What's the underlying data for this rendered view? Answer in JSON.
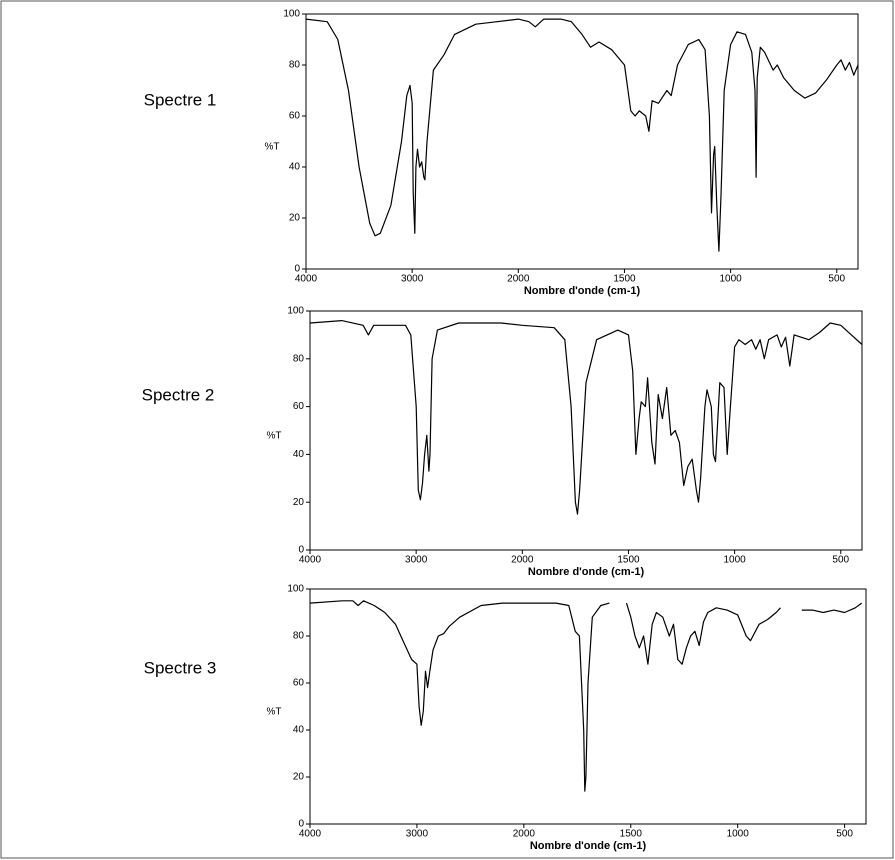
{
  "chart_data": [
    {
      "type": "line",
      "title": "Spectre 1",
      "ylabel": "%T",
      "xlabel": "Nombre d'onde (cm-1)",
      "color": "#000000",
      "xlim": [
        4000,
        400
      ],
      "x_break": 2000,
      "xticks": [
        4000,
        3000,
        2000,
        1500,
        1000,
        500
      ],
      "ylim": [
        0,
        100
      ],
      "yticks": [
        0,
        20,
        40,
        60,
        80,
        100
      ],
      "x": [
        4000,
        3800,
        3700,
        3600,
        3500,
        3400,
        3350,
        3300,
        3200,
        3100,
        3050,
        3020,
        3000,
        2990,
        2975,
        2965,
        2950,
        2930,
        2910,
        2890,
        2880,
        2860,
        2800,
        2700,
        2600,
        2400,
        2200,
        2000,
        1950,
        1920,
        1880,
        1800,
        1750,
        1700,
        1660,
        1620,
        1560,
        1500,
        1470,
        1450,
        1430,
        1400,
        1385,
        1370,
        1340,
        1300,
        1280,
        1250,
        1200,
        1150,
        1120,
        1100,
        1090,
        1080,
        1075,
        1065,
        1055,
        1045,
        1030,
        1000,
        970,
        930,
        900,
        885,
        880,
        875,
        860,
        840,
        800,
        780,
        750,
        700,
        650,
        600,
        550,
        500,
        480,
        460,
        440,
        420,
        400
      ],
      "values": [
        98,
        97,
        90,
        70,
        40,
        18,
        13,
        14,
        25,
        50,
        68,
        72,
        65,
        30,
        14,
        40,
        47,
        40,
        42,
        36,
        35,
        50,
        78,
        84,
        92,
        96,
        97,
        98,
        97,
        95,
        98,
        98,
        97,
        92,
        87,
        89,
        86,
        80,
        62,
        60,
        62,
        60,
        54,
        66,
        65,
        70,
        68,
        80,
        88,
        90,
        86,
        60,
        22,
        45,
        48,
        25,
        7,
        30,
        70,
        88,
        93,
        92,
        85,
        70,
        36,
        75,
        87,
        85,
        78,
        80,
        75,
        70,
        67,
        69,
        74,
        80,
        82,
        78,
        81,
        76,
        80
      ]
    },
    {
      "type": "line",
      "title": "Spectre 2",
      "ylabel": "%T",
      "xlabel": "Nombre d'onde (cm-1)",
      "color": "#000000",
      "xlim": [
        4000,
        400
      ],
      "x_break": 2000,
      "xticks": [
        4000,
        3000,
        2000,
        1500,
        1000,
        500
      ],
      "ylim": [
        0,
        100
      ],
      "yticks": [
        0,
        20,
        40,
        60,
        80,
        100
      ],
      "x": [
        4000,
        3700,
        3500,
        3450,
        3400,
        3100,
        3050,
        3000,
        2980,
        2960,
        2940,
        2920,
        2900,
        2880,
        2870,
        2850,
        2800,
        2600,
        2200,
        2000,
        1850,
        1800,
        1770,
        1750,
        1740,
        1730,
        1700,
        1650,
        1550,
        1500,
        1480,
        1465,
        1450,
        1440,
        1420,
        1410,
        1390,
        1375,
        1360,
        1340,
        1320,
        1300,
        1280,
        1260,
        1240,
        1220,
        1200,
        1180,
        1170,
        1160,
        1140,
        1130,
        1110,
        1100,
        1090,
        1070,
        1050,
        1035,
        1020,
        1000,
        980,
        950,
        920,
        900,
        880,
        860,
        840,
        800,
        780,
        760,
        740,
        720,
        650,
        600,
        550,
        500,
        450,
        400
      ],
      "values": [
        95,
        96,
        94,
        90,
        94,
        94,
        90,
        60,
        25,
        21,
        28,
        40,
        48,
        33,
        40,
        80,
        92,
        95,
        95,
        94,
        93,
        88,
        60,
        20,
        15,
        25,
        70,
        88,
        92,
        90,
        75,
        40,
        55,
        62,
        60,
        72,
        45,
        36,
        65,
        55,
        68,
        48,
        50,
        45,
        27,
        35,
        38,
        25,
        20,
        30,
        60,
        67,
        60,
        40,
        37,
        70,
        68,
        40,
        60,
        85,
        88,
        86,
        88,
        84,
        88,
        80,
        88,
        90,
        85,
        89,
        77,
        90,
        88,
        91,
        95,
        94,
        90,
        86
      ]
    },
    {
      "type": "line",
      "title": "Spectre 3",
      "ylabel": "%T",
      "xlabel": "Nombre d'onde (cm-1)",
      "color": "#000000",
      "xlim": [
        4000,
        400
      ],
      "x_break": 2000,
      "xticks": [
        4000,
        3000,
        2000,
        1500,
        1000,
        500
      ],
      "ylim": [
        0,
        100
      ],
      "yticks": [
        0,
        20,
        40,
        60,
        80,
        100
      ],
      "x": [
        4000,
        3700,
        3600,
        3550,
        3500,
        3400,
        3300,
        3200,
        3100,
        3050,
        3000,
        2980,
        2960,
        2940,
        2920,
        2900,
        2880,
        2850,
        2800,
        2750,
        2700,
        2600,
        2400,
        2200,
        2000,
        1850,
        1790,
        1760,
        1740,
        1720,
        1715,
        1710,
        1700,
        1680,
        1640,
        1600,
        1560,
        1520,
        1500,
        1480,
        1460,
        1440,
        1420,
        1400,
        1380,
        1350,
        1320,
        1300,
        1280,
        1260,
        1240,
        1220,
        1200,
        1180,
        1160,
        1140,
        1100,
        1050,
        1000,
        960,
        940,
        900,
        860,
        820,
        800,
        750,
        700,
        650,
        600,
        550,
        500,
        450,
        420
      ],
      "values": [
        94,
        95,
        95,
        93,
        95,
        93,
        90,
        85,
        75,
        70,
        68,
        50,
        42,
        48,
        65,
        58,
        65,
        74,
        80,
        81,
        84,
        88,
        93,
        94,
        94,
        94,
        93,
        82,
        80,
        40,
        14,
        20,
        60,
        88,
        93,
        94,
        null,
        94,
        88,
        80,
        75,
        80,
        68,
        85,
        90,
        88,
        80,
        85,
        70,
        68,
        75,
        80,
        82,
        76,
        86,
        90,
        92,
        91,
        89,
        80,
        78,
        85,
        87,
        90,
        92,
        null,
        91,
        91,
        90,
        91,
        90,
        92,
        94
      ]
    }
  ]
}
